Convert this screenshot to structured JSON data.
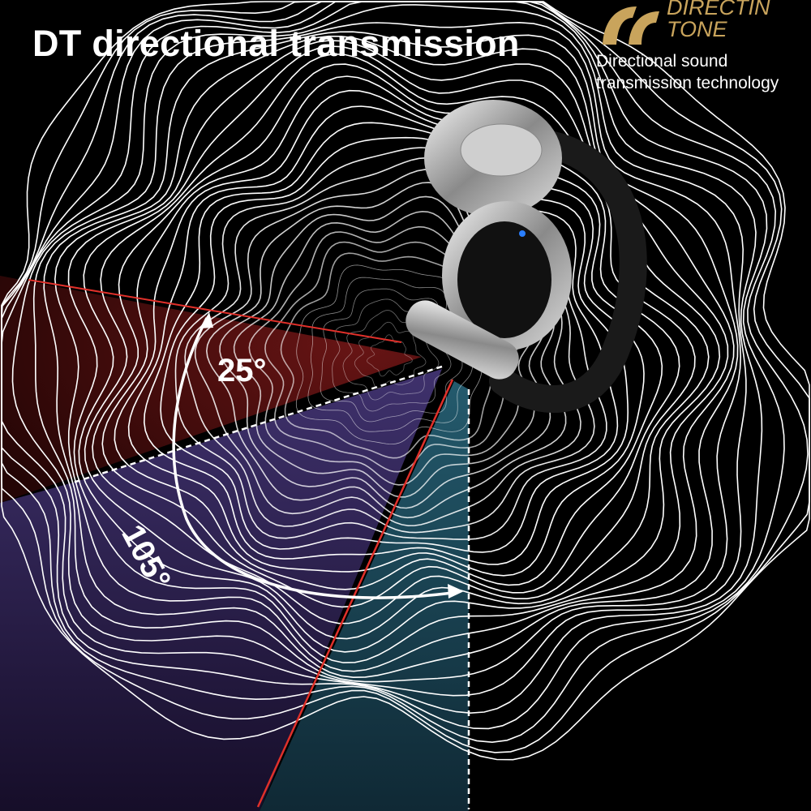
{
  "title": "DT directional transmission",
  "logo": {
    "line1": "DIRECTIN",
    "line2": "TONE",
    "color": "#c9a45c"
  },
  "tagline": {
    "line1": "Directional sound",
    "line2": "transmission technology"
  },
  "angles": {
    "small": "25°",
    "large": "105°"
  },
  "colors": {
    "red_wedge": "#5a1010",
    "purple_wedge": "#3a2a6a",
    "teal_wedge": "#1f4a60",
    "red_line": "#e0302a"
  }
}
